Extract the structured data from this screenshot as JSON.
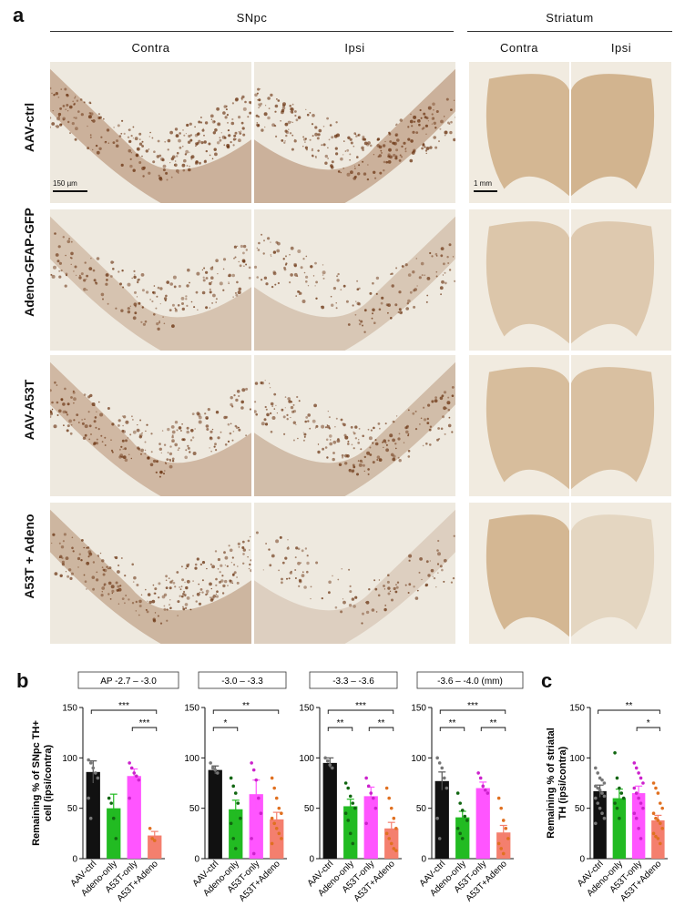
{
  "figure": {
    "panel_a": "a",
    "panel_b": "b",
    "panel_c": "c",
    "snpc_header": "SNpc",
    "striatum_header": "Striatum",
    "contra": "Contra",
    "ipsi": "Ipsi",
    "rows": [
      "AAV-ctrl",
      "Adeno-GFAP-GFP",
      "AAV-A53T",
      "A53T + Adeno"
    ],
    "scale_snpc": "150 µm",
    "scale_striatum": "1 mm"
  },
  "colors": {
    "ctrl": "#111111",
    "adeno": "#22bb22",
    "a53t": "#ff55ff",
    "combo": "#f47f6e",
    "combo_dots": "#e07020",
    "stain": "#8a4a1c",
    "tissue": "#efe9dc"
  },
  "chart_data": [
    {
      "type": "bar",
      "panel": "b",
      "title": "AP -2.7 – -3.0",
      "ylabel": "Remaining % of SNpc TH+ cell (ipsi/contra)",
      "categories": [
        "AAV-ctrl",
        "Adeno-only",
        "A53T-only",
        "A53T+Adeno"
      ],
      "values": [
        86,
        50,
        82,
        23
      ],
      "sem": [
        11,
        14,
        7,
        4
      ],
      "ylim": [
        0,
        150
      ],
      "yticks": [
        0,
        50,
        100,
        150
      ],
      "points": [
        [
          98,
          95,
          90,
          85,
          80,
          60,
          40
        ],
        [
          60,
          55,
          40,
          20
        ],
        [
          95,
          90,
          85,
          82,
          78,
          60
        ],
        [
          30,
          20,
          18
        ]
      ],
      "significance": [
        {
          "from": 0,
          "to": 3,
          "label": "***"
        },
        {
          "from": 2,
          "to": 3,
          "label": "***"
        }
      ]
    },
    {
      "type": "bar",
      "panel": "b",
      "title": "-3.0 – -3.3",
      "categories": [
        "AAV-ctrl",
        "Adeno-only",
        "A53T-only",
        "A53T+Adeno"
      ],
      "values": [
        88,
        49,
        64,
        39
      ],
      "sem": [
        4,
        9,
        14,
        7
      ],
      "ylim": [
        0,
        150
      ],
      "yticks": [
        0,
        50,
        100,
        150
      ],
      "points": [
        [
          95,
          90,
          88,
          85
        ],
        [
          80,
          72,
          65,
          55,
          40,
          35,
          20,
          10
        ],
        [
          95,
          88,
          78,
          60,
          45,
          20,
          5
        ],
        [
          80,
          70,
          60,
          50,
          45,
          40,
          35,
          30,
          25,
          20,
          15
        ]
      ],
      "significance": [
        {
          "from": 0,
          "to": 1,
          "label": "*"
        },
        {
          "from": 0,
          "to": 3,
          "label": "**"
        }
      ]
    },
    {
      "type": "bar",
      "panel": "b",
      "title": "-3.3 – -3.6",
      "categories": [
        "AAV-ctrl",
        "Adeno-only",
        "A53T-only",
        "A53T+Adeno"
      ],
      "values": [
        95,
        52,
        62,
        30
      ],
      "sem": [
        5,
        7,
        9,
        6
      ],
      "ylim": [
        0,
        150
      ],
      "yticks": [
        0,
        50,
        100,
        150
      ],
      "points": [
        [
          100,
          97,
          93,
          90
        ],
        [
          75,
          70,
          62,
          55,
          50,
          45,
          38,
          25,
          15
        ],
        [
          80,
          72,
          65,
          60,
          50,
          35
        ],
        [
          70,
          60,
          50,
          40,
          30,
          25,
          20,
          15,
          10,
          8
        ]
      ],
      "significance": [
        {
          "from": 0,
          "to": 1,
          "label": "**"
        },
        {
          "from": 0,
          "to": 3,
          "label": "***"
        },
        {
          "from": 2,
          "to": 3,
          "label": "**"
        }
      ]
    },
    {
      "type": "bar",
      "panel": "b",
      "title": "-3.6 – -4.0 (mm)",
      "categories": [
        "AAV-ctrl",
        "Adeno-only",
        "A53T-only",
        "A53T+Adeno"
      ],
      "values": [
        77,
        41,
        70,
        26
      ],
      "sem": [
        9,
        6,
        6,
        7
      ],
      "ylim": [
        0,
        150
      ],
      "yticks": [
        0,
        50,
        100,
        150
      ],
      "points": [
        [
          100,
          95,
          90,
          80,
          70,
          40,
          20
        ],
        [
          65,
          55,
          48,
          42,
          38,
          30,
          25,
          20
        ],
        [
          85,
          80,
          72,
          68,
          65
        ],
        [
          60,
          50,
          38,
          30,
          20,
          15,
          10,
          5
        ]
      ],
      "significance": [
        {
          "from": 0,
          "to": 1,
          "label": "**"
        },
        {
          "from": 0,
          "to": 3,
          "label": "***"
        },
        {
          "from": 2,
          "to": 3,
          "label": "**"
        }
      ]
    },
    {
      "type": "bar",
      "panel": "c",
      "ylabel": "Remaining % of striatal TH (ipsi/contra)",
      "categories": [
        "AAV-ctrl",
        "Adeno-only",
        "A53T-only",
        "A53T+Adeno"
      ],
      "values": [
        67,
        60,
        65,
        38
      ],
      "sem": [
        6,
        9,
        7,
        5
      ],
      "ylim": [
        0,
        150
      ],
      "yticks": [
        0,
        50,
        100,
        150
      ],
      "points": [
        [
          90,
          85,
          80,
          78,
          75,
          72,
          70,
          68,
          65,
          62,
          60,
          55,
          50,
          45,
          40,
          35
        ],
        [
          105,
          80,
          70,
          65,
          60,
          55,
          50,
          40
        ],
        [
          95,
          90,
          85,
          80,
          75,
          70,
          65,
          60,
          55,
          50,
          45,
          40,
          30,
          20
        ],
        [
          75,
          70,
          65,
          55,
          50,
          45,
          40,
          38,
          35,
          30,
          25,
          22,
          20,
          15
        ]
      ],
      "significance": [
        {
          "from": 0,
          "to": 3,
          "label": "**"
        },
        {
          "from": 2,
          "to": 3,
          "label": "*"
        }
      ]
    }
  ]
}
